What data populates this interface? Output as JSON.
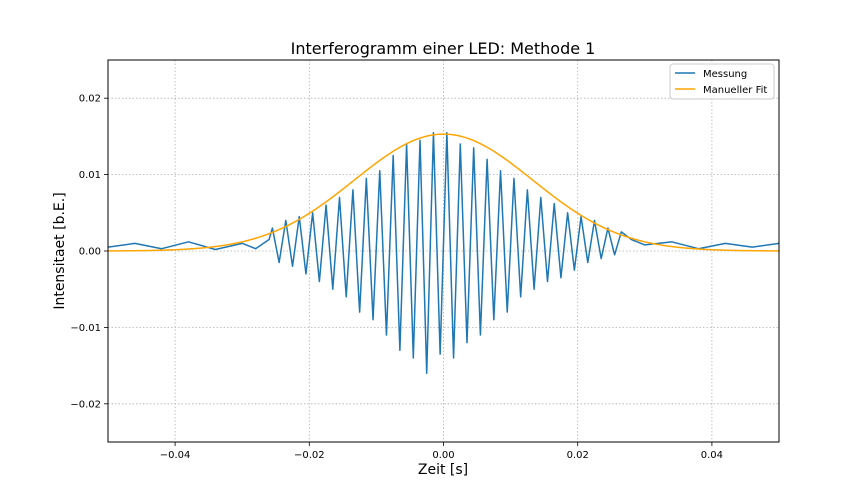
{
  "chart_data": {
    "type": "line",
    "title": "Interferogramm einer LED: Methode 1",
    "xlabel": "Zeit [s]",
    "ylabel": "Intensitaet [b.E.]",
    "xlim": [
      -0.05,
      0.05
    ],
    "ylim": [
      -0.025,
      0.025
    ],
    "xticks": [
      -0.04,
      -0.02,
      0.0,
      0.02,
      0.04
    ],
    "xtick_labels": [
      "−0.04",
      "−0.02",
      "0.00",
      "0.02",
      "0.04"
    ],
    "yticks": [
      -0.02,
      -0.01,
      0.0,
      0.01,
      0.02
    ],
    "ytick_labels": [
      "−0.02",
      "−0.01",
      "0.00",
      "0.01",
      "0.02"
    ],
    "grid": true,
    "legend_position": "top-right",
    "series": [
      {
        "name": "Messung",
        "color": "#1f77b4",
        "x": [
          -0.05,
          -0.046,
          -0.042,
          -0.038,
          -0.034,
          -0.03,
          -0.028,
          -0.026,
          -0.0255,
          -0.0245,
          -0.0235,
          -0.0225,
          -0.0215,
          -0.0205,
          -0.0195,
          -0.0185,
          -0.0175,
          -0.0165,
          -0.0155,
          -0.0145,
          -0.0135,
          -0.0125,
          -0.0115,
          -0.0105,
          -0.0095,
          -0.0085,
          -0.0075,
          -0.0065,
          -0.0055,
          -0.0045,
          -0.0035,
          -0.0025,
          -0.0015,
          -0.0005,
          0.0005,
          0.0015,
          0.0025,
          0.0035,
          0.0045,
          0.0055,
          0.0065,
          0.0075,
          0.0085,
          0.0095,
          0.0105,
          0.0115,
          0.0125,
          0.0135,
          0.0145,
          0.0155,
          0.0165,
          0.0175,
          0.0185,
          0.0195,
          0.0205,
          0.0215,
          0.0225,
          0.0235,
          0.0245,
          0.0255,
          0.0265,
          0.028,
          0.03,
          0.034,
          0.038,
          0.042,
          0.046,
          0.05
        ],
        "y": [
          0.0005,
          0.001,
          0.0003,
          0.0012,
          0.0002,
          0.001,
          0.0003,
          0.0015,
          0.003,
          -0.0015,
          0.004,
          -0.002,
          0.0045,
          -0.003,
          0.005,
          -0.004,
          0.006,
          -0.005,
          0.007,
          -0.006,
          0.008,
          -0.008,
          0.0095,
          -0.009,
          0.0105,
          -0.011,
          0.0125,
          -0.013,
          0.014,
          -0.014,
          0.0145,
          -0.016,
          0.0155,
          -0.0135,
          0.0155,
          -0.014,
          0.014,
          -0.012,
          0.0135,
          -0.011,
          0.012,
          -0.009,
          0.0105,
          -0.008,
          0.0095,
          -0.006,
          0.008,
          -0.005,
          0.007,
          -0.004,
          0.0062,
          -0.0035,
          0.005,
          -0.0025,
          0.0045,
          -0.0015,
          0.004,
          -0.001,
          0.003,
          -0.0005,
          0.0025,
          0.0015,
          0.0008,
          0.0012,
          0.0003,
          0.001,
          0.0005,
          0.001
        ]
      },
      {
        "name": "Manueller Fit",
        "color": "#ffa500",
        "amplitude": 0.0153,
        "center": 0.0,
        "sigma": 0.0133
      }
    ]
  }
}
